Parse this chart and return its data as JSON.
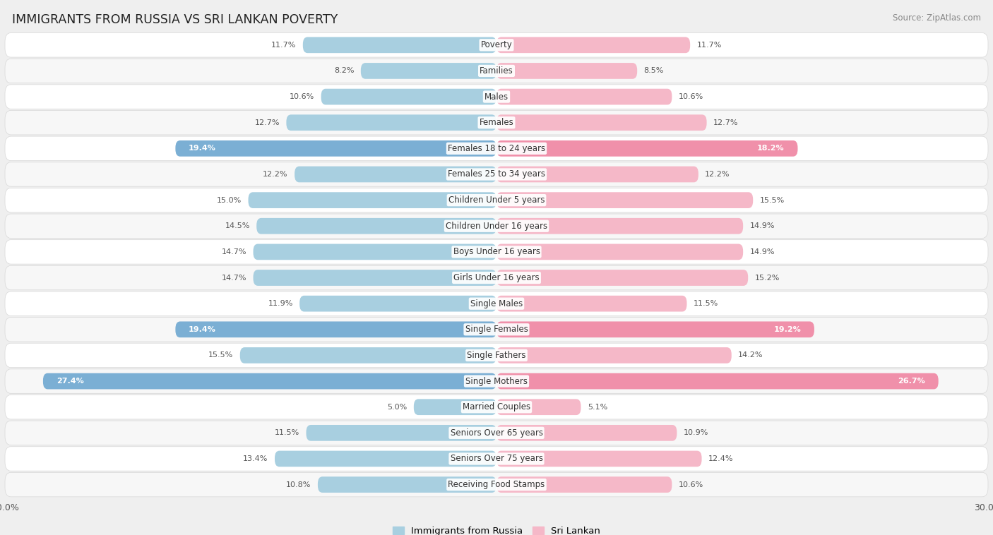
{
  "title": "IMMIGRANTS FROM RUSSIA VS SRI LANKAN POVERTY",
  "source": "Source: ZipAtlas.com",
  "categories": [
    "Poverty",
    "Families",
    "Males",
    "Females",
    "Females 18 to 24 years",
    "Females 25 to 34 years",
    "Children Under 5 years",
    "Children Under 16 years",
    "Boys Under 16 years",
    "Girls Under 16 years",
    "Single Males",
    "Single Females",
    "Single Fathers",
    "Single Mothers",
    "Married Couples",
    "Seniors Over 65 years",
    "Seniors Over 75 years",
    "Receiving Food Stamps"
  ],
  "russia_values": [
    11.7,
    8.2,
    10.6,
    12.7,
    19.4,
    12.2,
    15.0,
    14.5,
    14.7,
    14.7,
    11.9,
    19.4,
    15.5,
    27.4,
    5.0,
    11.5,
    13.4,
    10.8
  ],
  "srilankan_values": [
    11.7,
    8.5,
    10.6,
    12.7,
    18.2,
    12.2,
    15.5,
    14.9,
    14.9,
    15.2,
    11.5,
    19.2,
    14.2,
    26.7,
    5.1,
    10.9,
    12.4,
    10.6
  ],
  "russia_color_normal": "#a8cfe0",
  "russia_color_highlight": "#7bafd4",
  "srilankan_color_normal": "#f5b8c8",
  "srilankan_color_highlight": "#f090aa",
  "highlight_threshold": 17.0,
  "max_value": 30.0,
  "bg_color": "#efefef",
  "row_color_even": "#ffffff",
  "row_color_odd": "#f7f7f7",
  "row_edge_color": "#d8d8d8",
  "label_fontsize": 8.5,
  "value_fontsize": 8.0,
  "title_fontsize": 12.5,
  "legend_labels": [
    "Immigrants from Russia",
    "Sri Lankan"
  ]
}
